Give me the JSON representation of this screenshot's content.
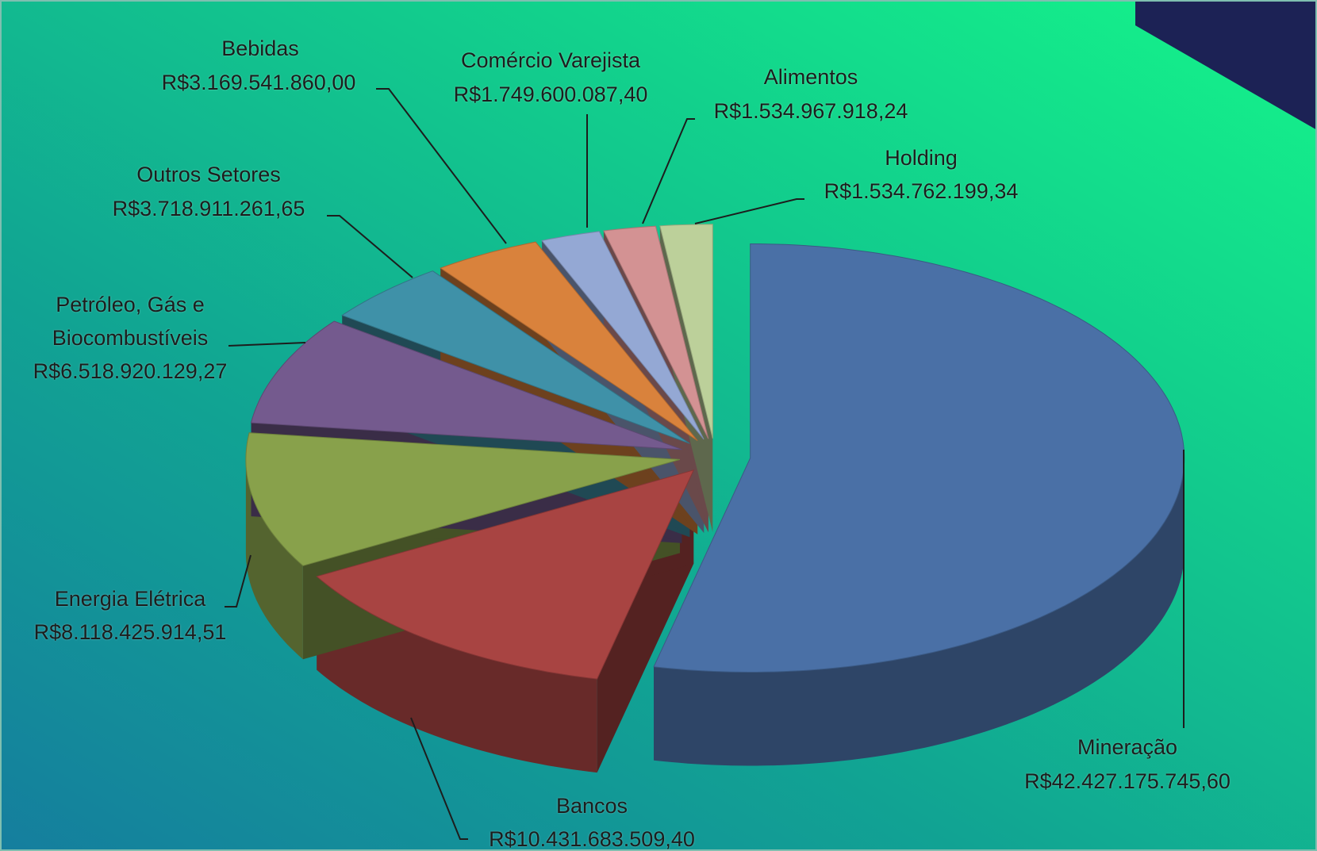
{
  "chart_data": {
    "type": "pie3d",
    "categories": [
      "Mineração",
      "Bancos",
      "Energia Elétrica",
      "Petróleo, Gás  e Biocombustíveis",
      "Outros Setores",
      "Bebidas",
      "Comércio Varejista",
      "Alimentos",
      "Holding"
    ],
    "values": [
      42427175745.6,
      10431683509.4,
      8118425914.51,
      6518920129.27,
      3718911261.65,
      3169541860.0,
      1749600087.4,
      1534967918.24,
      1534762199.34
    ],
    "value_labels": [
      "R$42.427.175.745,60",
      "R$10.431.683.509,40",
      "R$8.118.425.914,51",
      "R$6.518.920.129,27",
      "R$3.718.911.261,65",
      "R$3.169.541.860,00",
      "R$1.749.600.087,40",
      "R$1.534.967.918,24",
      "R$1.534.762.199,34"
    ],
    "colors": [
      "#4a70a6",
      "#a84442",
      "#88a14b",
      "#745a8e",
      "#3f91a8",
      "#d9823c",
      "#94a8d4",
      "#d39293",
      "#bcd09a"
    ]
  }
}
